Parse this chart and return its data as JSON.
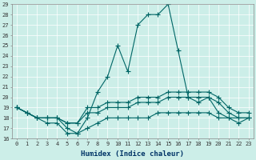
{
  "xlabel": "Humidex (Indice chaleur)",
  "x_values": [
    0,
    1,
    2,
    3,
    4,
    5,
    6,
    7,
    8,
    9,
    10,
    11,
    12,
    13,
    14,
    15,
    16,
    17,
    18,
    19,
    20,
    21,
    22,
    23
  ],
  "series": [
    [
      19,
      18.5,
      18,
      17.5,
      17.5,
      16.5,
      16.5,
      18.0,
      20.5,
      22.0,
      25.0,
      22.5,
      27.0,
      28.0,
      28.0,
      29.0,
      24.5,
      20.0,
      19.5,
      20.0,
      18.5,
      18.0,
      17.5,
      18.0
    ],
    [
      19,
      18.5,
      18.0,
      18.0,
      18.0,
      17.5,
      17.5,
      19.0,
      19.0,
      19.5,
      19.5,
      19.5,
      20.0,
      20.0,
      20.0,
      20.5,
      20.5,
      20.5,
      20.5,
      20.5,
      20.0,
      19.0,
      18.5,
      18.5
    ],
    [
      19,
      18.5,
      18.0,
      18.0,
      18.0,
      17.5,
      17.5,
      18.5,
      18.5,
      19.0,
      19.0,
      19.0,
      19.5,
      19.5,
      19.5,
      20.0,
      20.0,
      20.0,
      20.0,
      20.0,
      19.5,
      18.5,
      18.0,
      18.0
    ],
    [
      19,
      18.5,
      18.0,
      18.0,
      18.0,
      17.0,
      16.5,
      17.0,
      17.5,
      18.0,
      18.0,
      18.0,
      18.0,
      18.0,
      18.5,
      18.5,
      18.5,
      18.5,
      18.5,
      18.5,
      18.0,
      18.0,
      18.0,
      18.0
    ]
  ],
  "line_color": "#006666",
  "marker": "+",
  "marker_size": 4,
  "ylim": [
    16,
    29
  ],
  "yticks": [
    16,
    17,
    18,
    19,
    20,
    21,
    22,
    23,
    24,
    25,
    26,
    27,
    28,
    29
  ],
  "xticks": [
    0,
    1,
    2,
    3,
    4,
    5,
    6,
    7,
    8,
    9,
    10,
    11,
    12,
    13,
    14,
    15,
    16,
    17,
    18,
    19,
    20,
    21,
    22,
    23
  ],
  "bg_color": "#cceee8",
  "grid_color": "#ffffff",
  "line_width": 0.8,
  "xlabel_fontsize": 6.5,
  "tick_fontsize": 5.0
}
